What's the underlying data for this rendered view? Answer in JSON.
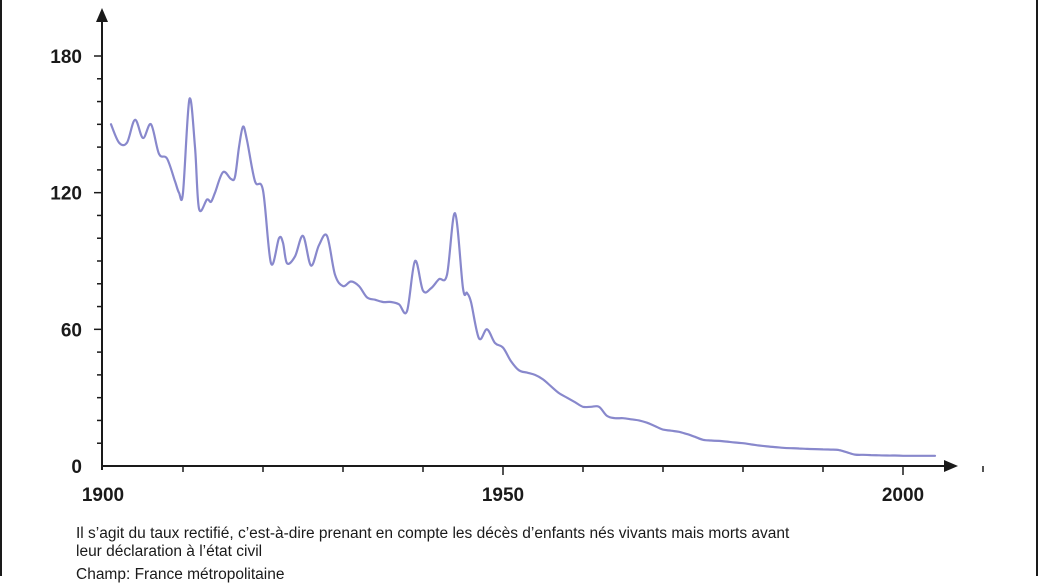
{
  "chart_data": {
    "type": "line",
    "title": "",
    "xlabel": "",
    "ylabel": "",
    "xlim": [
      1900,
      2012
    ],
    "ylim": [
      0,
      190
    ],
    "x_ticks": [
      1900,
      1950,
      2000
    ],
    "y_ticks": [
      0,
      60,
      120,
      180
    ],
    "x_tick_labels": [
      "1900",
      "1950",
      "2000"
    ],
    "y_tick_labels": [
      "0",
      "60",
      "120",
      "180"
    ],
    "grid": false,
    "line_color": "#8888cc",
    "series": [
      {
        "x": [
          1901,
          1902,
          1903,
          1904,
          1905,
          1906,
          1907,
          1908,
          1909,
          1909.5,
          1910,
          1910.8,
          1911.5,
          1912,
          1913,
          1913.5,
          1914,
          1915,
          1916,
          1916.5,
          1917,
          1917.5,
          1918,
          1919,
          1920,
          1921,
          1922,
          1922.5,
          1923,
          1924,
          1925,
          1926,
          1927,
          1928,
          1929,
          1930,
          1931,
          1932,
          1933,
          1934,
          1935,
          1936,
          1937,
          1938,
          1939,
          1940,
          1941,
          1942,
          1943,
          1944,
          1945,
          1945.5,
          1946,
          1947,
          1948,
          1949,
          1950,
          1951,
          1952,
          1953,
          1954,
          1955,
          1956,
          1957,
          1958,
          1959,
          1960,
          1961,
          1962,
          1963,
          1964,
          1965,
          1966,
          1967,
          1968,
          1969,
          1970,
          1971,
          1972,
          1973,
          1974,
          1975,
          1976,
          1977,
          1978,
          1979,
          1980,
          1981,
          1982,
          1983,
          1984,
          1985,
          1986,
          1987,
          1988,
          1989,
          1990,
          1991,
          1992,
          1993,
          1994,
          1995,
          1996,
          1997,
          1998,
          1999,
          2000,
          2001,
          2002,
          2003,
          2004
        ],
        "y": [
          150,
          142,
          142,
          152,
          144,
          150,
          137,
          135,
          125,
          120,
          120,
          161,
          140,
          113,
          117,
          116,
          120,
          129,
          126,
          127,
          140,
          149,
          143,
          125,
          121,
          89,
          100,
          98,
          89,
          92,
          101,
          88,
          97,
          101,
          84,
          79,
          81,
          79,
          74,
          73,
          72,
          72,
          71,
          68,
          90,
          77,
          78,
          82,
          84,
          111,
          78,
          76,
          72,
          56,
          60,
          54,
          52,
          46,
          42,
          41,
          40,
          38,
          35,
          32,
          30,
          28,
          26,
          26,
          26,
          22,
          21,
          21,
          20.5,
          20,
          19,
          17.5,
          16,
          15.5,
          15,
          14,
          12.8,
          11.5,
          11.2,
          11,
          10.7,
          10.3,
          10,
          9.5,
          9,
          8.6,
          8.3,
          8,
          7.8,
          7.7,
          7.5,
          7.4,
          7.3,
          7.2,
          7,
          6,
          5,
          4.9,
          4.8,
          4.7,
          4.6,
          4.6,
          4.5,
          4.5,
          4.5,
          4.5,
          4.5
        ]
      }
    ]
  },
  "notes": {
    "line1": "Il s’agit du taux rectifié, c’est-à-dire prenant en compte les décès d’enfants nés vivants mais morts avant",
    "line2": "leur déclaration à l’état civil",
    "line3": "Champ: France métropolitaine"
  }
}
